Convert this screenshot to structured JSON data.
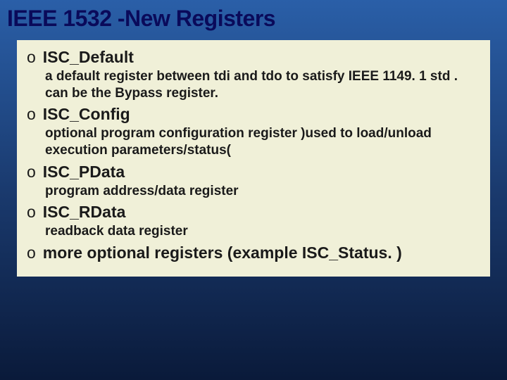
{
  "slide": {
    "title": "IEEE 1532 -New Registers",
    "title_color": "#0a0a5a",
    "title_fontsize": 32,
    "background_gradient": [
      "#2a5fa8",
      "#1a3a6e",
      "#0a1a3a"
    ],
    "content_bg": "#f0f0d8",
    "text_color": "#1a1a1a",
    "marker_char": "o",
    "item_title_fontsize": 23,
    "item_desc_fontsize": 19,
    "items": [
      {
        "name": "ISC_Default",
        "desc": "a default register between tdi and tdo to satisfy IEEE 1149. 1 std . can be the Bypass register."
      },
      {
        "name": "ISC_Config",
        "desc": "optional program configuration  register )used to load/unload execution parameters/status("
      },
      {
        "name": "ISC_PData",
        "desc": "program address/data register"
      },
      {
        "name": "ISC_RData",
        "desc": "readback data register"
      },
      {
        "name": "more optional registers (example ISC_Status. )",
        "desc": ""
      }
    ]
  }
}
